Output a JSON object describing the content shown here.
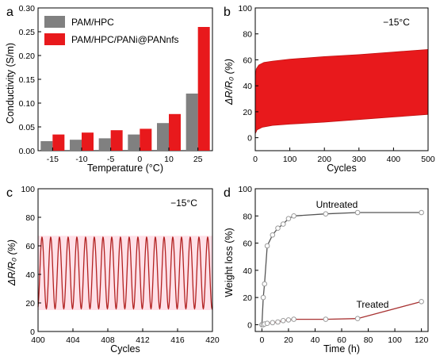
{
  "chart_data": [
    {
      "panel": "a",
      "type": "bar",
      "xlabel": "Temperature (°C)",
      "ylabel": "Conductivity (S/m)",
      "ylim": [
        0,
        0.3
      ],
      "yticks": [
        "0.00",
        "0.05",
        "0.10",
        "0.15",
        "0.20",
        "0.25",
        "0.30"
      ],
      "categories": [
        "-15",
        "-10",
        "-5",
        "0",
        "10",
        "25"
      ],
      "series": [
        {
          "name": "PAM/HPC",
          "color": "#808080",
          "values": [
            0.02,
            0.023,
            0.026,
            0.034,
            0.058,
            0.12
          ]
        },
        {
          "name": "PAM/HPC/PANi@PANnfs",
          "color": "#e8191c",
          "values": [
            0.034,
            0.038,
            0.043,
            0.046,
            0.077,
            0.26
          ]
        }
      ],
      "legend": "top-left"
    },
    {
      "panel": "b",
      "type": "area",
      "xlabel": "Cycles",
      "ylabel": "ΔR/R₀ (%)",
      "annotation": "−15°C",
      "xlim": [
        0,
        500
      ],
      "ylim": [
        -10,
        100
      ],
      "xticks": [
        "0",
        "100",
        "200",
        "300",
        "400",
        "500"
      ],
      "yticks": [
        "0",
        "20",
        "40",
        "60",
        "80",
        "100"
      ],
      "color": "#e8191c",
      "upper": {
        "x": [
          0,
          3,
          10,
          25,
          50,
          100,
          200,
          300,
          400,
          500
        ],
        "y": [
          47,
          53,
          56,
          58,
          59,
          60.5,
          62.5,
          64,
          66,
          68
        ]
      },
      "lower": {
        "x": [
          0,
          5,
          20,
          50,
          100,
          200,
          300,
          400,
          500
        ],
        "y": [
          3,
          6,
          8,
          9.5,
          10.5,
          12,
          14,
          16,
          18
        ]
      }
    },
    {
      "panel": "c",
      "type": "line",
      "xlabel": "Cycles",
      "ylabel": "ΔR/R₀ (%)",
      "annotation": "−15°C",
      "xlim": [
        400,
        420
      ],
      "ylim": [
        0,
        100
      ],
      "xticks": [
        "400",
        "404",
        "408",
        "412",
        "416",
        "420"
      ],
      "yticks": [
        "0",
        "20",
        "40",
        "60",
        "80",
        "100"
      ],
      "color": "#b22222",
      "band_color": "#ffc8d6",
      "y_min": 16,
      "y_max": 66,
      "cycles": 20
    },
    {
      "panel": "d",
      "type": "line",
      "xlabel": "Time (h)",
      "ylabel": "Weight loss (%)",
      "xlim": [
        -5,
        125
      ],
      "ylim": [
        -5,
        100
      ],
      "xticks": [
        "0",
        "20",
        "40",
        "60",
        "80",
        "100",
        "120"
      ],
      "yticks": [
        "0",
        "20",
        "40",
        "60",
        "80",
        "100"
      ],
      "series": [
        {
          "name": "Untreated",
          "color": "#555555",
          "x": [
            0,
            1,
            2,
            4,
            8,
            12,
            16,
            20,
            24,
            48,
            72,
            120
          ],
          "y": [
            0,
            20,
            30,
            58,
            66,
            71,
            74,
            78,
            80,
            81.5,
            82.5,
            82.5
          ]
        },
        {
          "name": "Treated",
          "color": "#a83232",
          "x": [
            0,
            1,
            2,
            4,
            8,
            12,
            16,
            20,
            24,
            48,
            72,
            120
          ],
          "y": [
            0,
            0,
            0.5,
            1,
            1.5,
            2,
            3,
            3.5,
            4,
            4,
            4.5,
            17
          ]
        }
      ]
    }
  ]
}
